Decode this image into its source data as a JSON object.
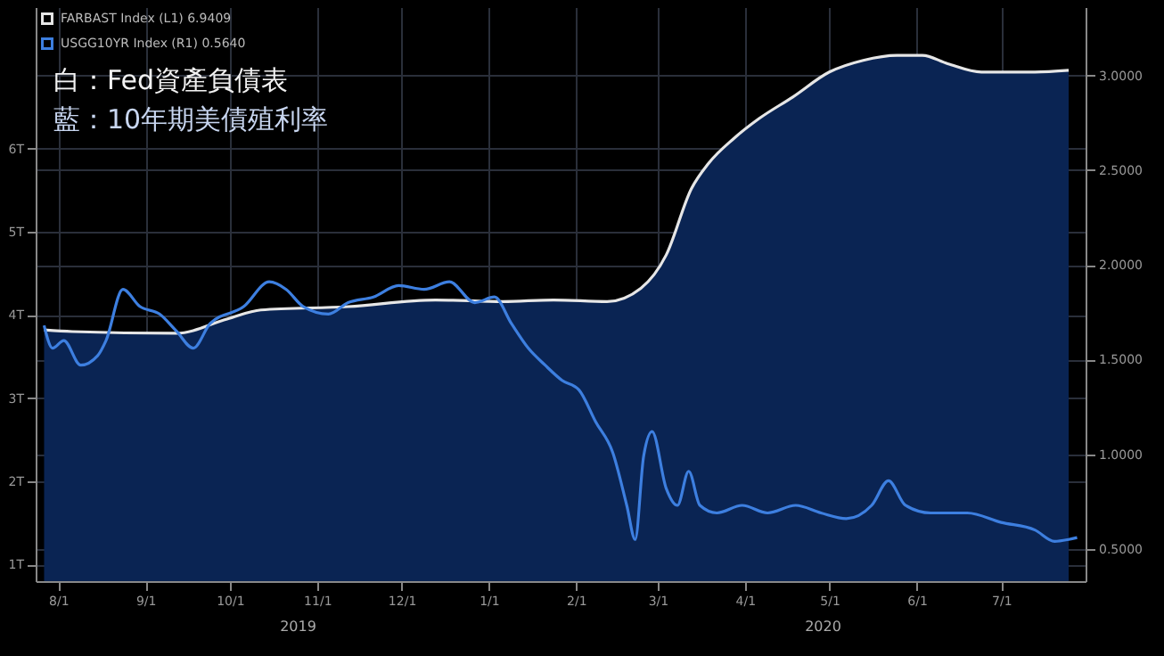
{
  "chart_data": {
    "type": "line",
    "title": "白：Fed資產負債表",
    "subtitle": "藍：10年期美債殖利率",
    "xlim": [
      "2019-07-24",
      "2020-07-31"
    ],
    "xticks": [
      {
        "value": "2019-08-01",
        "label": "8/1"
      },
      {
        "value": "2019-09-01",
        "label": "9/1"
      },
      {
        "value": "2019-10-01",
        "label": "10/1"
      },
      {
        "value": "2019-11-01",
        "label": "11/1"
      },
      {
        "value": "2019-12-01",
        "label": "12/1"
      },
      {
        "value": "2020-01-01",
        "label": "1/1"
      },
      {
        "value": "2020-02-01",
        "label": "2/1"
      },
      {
        "value": "2020-03-01",
        "label": "3/1"
      },
      {
        "value": "2020-04-01",
        "label": "4/1"
      },
      {
        "value": "2020-05-01",
        "label": "5/1"
      },
      {
        "value": "2020-06-01",
        "label": "6/1"
      },
      {
        "value": "2020-07-01",
        "label": "7/1"
      }
    ],
    "ylim": [
      0.8,
      7.7
    ],
    "yticks": [
      {
        "value": 1,
        "label": "1T"
      },
      {
        "value": 2,
        "label": "2T"
      },
      {
        "value": 3,
        "label": "3T"
      },
      {
        "value": 4,
        "label": "4T"
      },
      {
        "value": 5,
        "label": "5T"
      },
      {
        "value": 6,
        "label": "6T"
      }
    ],
    "y2lim": [
      0.33,
      3.36
    ],
    "y2ticks": [
      {
        "value": 0.5,
        "label": "0.5000"
      },
      {
        "value": 1,
        "label": "1.0000"
      },
      {
        "value": 1.5,
        "label": "1.5000"
      },
      {
        "value": 2,
        "label": "2.0000"
      },
      {
        "value": 2.5,
        "label": "2.5000"
      },
      {
        "value": 3,
        "label": "3.0000"
      }
    ],
    "grid": true,
    "legend": "top left",
    "annotations": [
      "2019",
      "2020"
    ],
    "series": [
      {
        "name": "FARBAST Index (L1) 6.9409",
        "type": "area",
        "color": "#e6e6e6",
        "x": [
          "2019-07-27",
          "2019-08-06",
          "2019-09-12",
          "2019-09-30",
          "2019-10-12",
          "2019-11-12",
          "2019-12-13",
          "2020-01-06",
          "2020-01-24",
          "2020-02-12",
          "2020-02-24",
          "2020-03-04",
          "2020-03-13",
          "2020-03-19",
          "2020-03-28",
          "2020-04-06",
          "2020-04-18",
          "2020-05-01",
          "2020-05-13",
          "2020-05-25",
          "2020-06-03",
          "2020-06-12",
          "2020-06-24",
          "2020-07-13",
          "2020-07-25"
        ],
        "values": [
          3.82,
          3.8,
          3.78,
          3.95,
          4.06,
          4.1,
          4.18,
          4.16,
          4.18,
          4.16,
          4.32,
          4.72,
          5.52,
          5.82,
          6.12,
          6.36,
          6.62,
          6.92,
          7.06,
          7.12,
          7.12,
          7.02,
          6.92,
          6.92,
          6.94
        ]
      },
      {
        "name": "USGG10YR Index (R1) 0.5640",
        "axis": "y2",
        "color": "#3d7fe0",
        "x": [
          "2019-07-27",
          "2019-07-30",
          "2019-08-03",
          "2019-08-09",
          "2019-08-15",
          "2019-08-18",
          "2019-08-24",
          "2019-08-30",
          "2019-09-06",
          "2019-09-12",
          "2019-09-18",
          "2019-09-24",
          "2019-10-06",
          "2019-10-15",
          "2019-10-21",
          "2019-10-27",
          "2019-11-05",
          "2019-11-12",
          "2019-11-21",
          "2019-11-30",
          "2019-12-09",
          "2019-12-18",
          "2019-12-27",
          "2020-01-03",
          "2020-01-09",
          "2020-01-15",
          "2020-01-21",
          "2020-01-27",
          "2020-02-02",
          "2020-02-08",
          "2020-02-14",
          "2020-02-19",
          "2020-02-22",
          "2020-02-25",
          "2020-02-28",
          "2020-03-04",
          "2020-03-08",
          "2020-03-12",
          "2020-03-16",
          "2020-03-22",
          "2020-03-31",
          "2020-04-09",
          "2020-04-19",
          "2020-04-28",
          "2020-05-07",
          "2020-05-16",
          "2020-05-22",
          "2020-05-28",
          "2020-06-06",
          "2020-06-19",
          "2020-07-01",
          "2020-07-13",
          "2020-07-20",
          "2020-07-25",
          "2020-07-28"
        ],
        "values": [
          1.68,
          1.56,
          1.6,
          1.47,
          1.52,
          1.6,
          1.87,
          1.78,
          1.74,
          1.65,
          1.56,
          1.69,
          1.78,
          1.91,
          1.87,
          1.78,
          1.74,
          1.8,
          1.83,
          1.89,
          1.87,
          1.91,
          1.8,
          1.83,
          1.69,
          1.56,
          1.47,
          1.39,
          1.34,
          1.17,
          1.01,
          0.73,
          0.55,
          0.99,
          1.12,
          0.82,
          0.73,
          0.91,
          0.73,
          0.69,
          0.73,
          0.69,
          0.73,
          0.69,
          0.66,
          0.73,
          0.86,
          0.73,
          0.69,
          0.69,
          0.64,
          0.6,
          0.54,
          0.55,
          0.56
        ]
      }
    ]
  }
}
